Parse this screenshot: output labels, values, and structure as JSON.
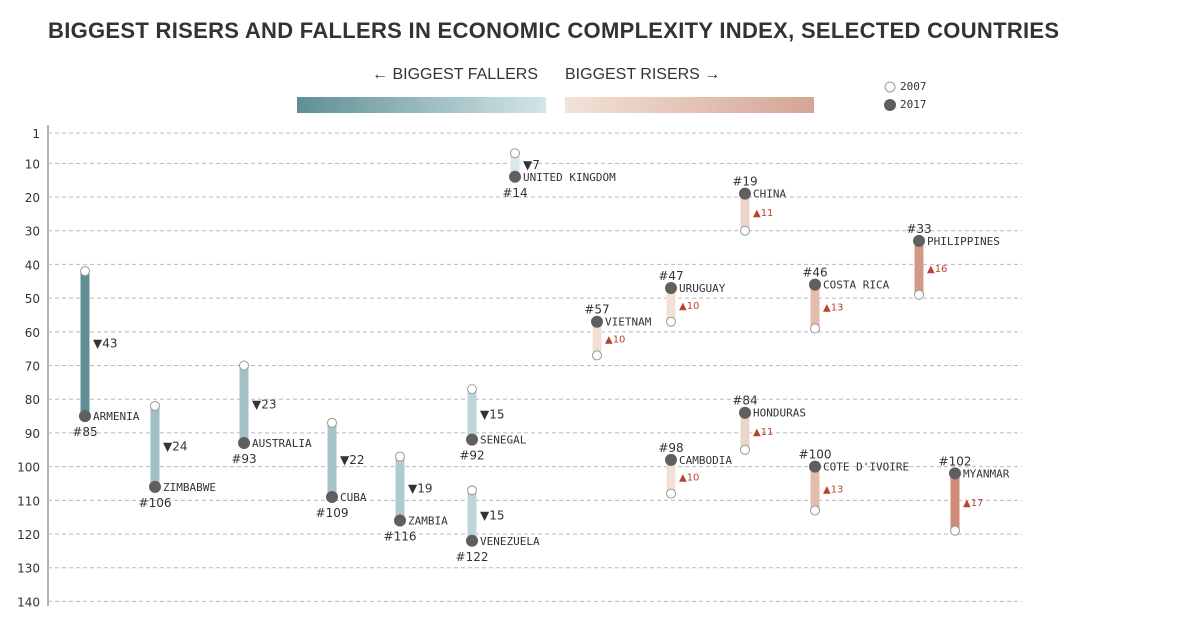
{
  "chart_data": {
    "type": "dumbbell",
    "title": "BIGGEST RISERS AND FALLERS IN ECONOMIC COMPLEXITY INDEX, SELECTED COUNTRIES",
    "legend": {
      "fallers": "← BIGGEST FALLERS",
      "risers": "BIGGEST RISERS →",
      "y2007": "2007",
      "y2017": "2017"
    },
    "colors": {
      "faller_dark": "#5f8f95",
      "faller_light": "#d8e9ec",
      "riser_light": "#f2e0d5",
      "riser_dark": "#cf8c7a",
      "dot": "#5f5f5f",
      "up_arrow": "#b5452e"
    },
    "y_ticks": [
      1,
      10,
      20,
      30,
      40,
      50,
      60,
      70,
      80,
      90,
      100,
      110,
      120,
      130,
      140
    ],
    "ylim": [
      1,
      140
    ],
    "countries": [
      {
        "name": "ARMENIA",
        "r2007": 42,
        "r2017": 85,
        "change": 43,
        "rank_label": "#85",
        "col": 1
      },
      {
        "name": "ZIMBABWE",
        "r2007": 82,
        "r2017": 106,
        "change": 24,
        "rank_label": "#106",
        "col": 2
      },
      {
        "name": "AUSTRALIA",
        "r2007": 70,
        "r2017": 93,
        "change": 23,
        "rank_label": "#93",
        "col": 3
      },
      {
        "name": "CUBA",
        "r2007": 87,
        "r2017": 109,
        "change": 22,
        "rank_label": "#109",
        "col": 4
      },
      {
        "name": "ZAMBIA",
        "r2007": 97,
        "r2017": 116,
        "change": 19,
        "rank_label": "#116",
        "col": 5
      },
      {
        "name": "SENEGAL",
        "r2007": 77,
        "r2017": 92,
        "change": 15,
        "rank_label": "#92",
        "col": 6
      },
      {
        "name": "VENEZUELA",
        "r2007": 107,
        "r2017": 122,
        "change": 15,
        "rank_label": "#122",
        "col": 6
      },
      {
        "name": "UNITED KINGDOM",
        "r2007": 7,
        "r2017": 14,
        "change": 7,
        "rank_label": "#14",
        "col": 7
      },
      {
        "name": "VIETNAM",
        "r2007": 67,
        "r2017": 57,
        "change": 10,
        "rank_label": "#57",
        "col": 8
      },
      {
        "name": "URUGUAY",
        "r2007": 57,
        "r2017": 47,
        "change": 10,
        "rank_label": "#47",
        "col": 9
      },
      {
        "name": "CAMBODIA",
        "r2007": 108,
        "r2017": 98,
        "change": 10,
        "rank_label": "#98",
        "col": 9
      },
      {
        "name": "CHINA",
        "r2007": 30,
        "r2017": 19,
        "change": 11,
        "rank_label": "#19",
        "col": 10
      },
      {
        "name": "HONDURAS",
        "r2007": 95,
        "r2017": 84,
        "change": 11,
        "rank_label": "#84",
        "col": 10
      },
      {
        "name": "COSTA RICA",
        "r2007": 59,
        "r2017": 46,
        "change": 13,
        "rank_label": "#46",
        "col": 11
      },
      {
        "name": "COTE D'IVOIRE",
        "r2007": 113,
        "r2017": 100,
        "change": 13,
        "rank_label": "#100",
        "col": 11
      },
      {
        "name": "PHILIPPINES",
        "r2007": 49,
        "r2017": 33,
        "change": 16,
        "rank_label": "#33",
        "col": 12
      },
      {
        "name": "MYANMAR",
        "r2007": 119,
        "r2017": 102,
        "change": 17,
        "rank_label": "#102",
        "col": 13
      }
    ]
  }
}
